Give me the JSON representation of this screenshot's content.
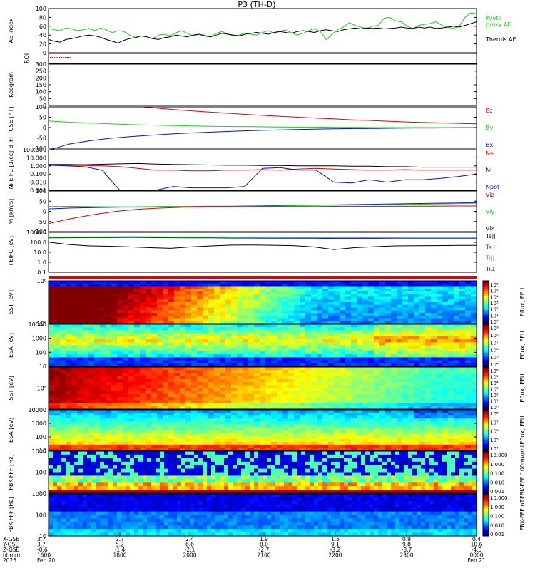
{
  "title": "P3 (TH-D)",
  "colors": {
    "green": "#18d018",
    "red": "#e00000",
    "blue": "#0010d8",
    "black": "#000000"
  },
  "chart_data": [
    {
      "id": "ae",
      "type": "line",
      "ylabel": "AE index",
      "ylim": [
        0,
        100
      ],
      "yticks": [
        "100",
        "80",
        "60",
        "40",
        "20",
        "0"
      ],
      "legend": [
        "Kyoto",
        "proxy AE",
        "Thernis AE"
      ],
      "series": [
        {
          "name": "Kyoto proxy AE",
          "color": "#18d018",
          "values": [
            55,
            52,
            50,
            56,
            54,
            50,
            52,
            55,
            50,
            56,
            52,
            45,
            50,
            48,
            40,
            35,
            38,
            36,
            32,
            40,
            42,
            38,
            45,
            50,
            44,
            38,
            42,
            40,
            36,
            44,
            48,
            42,
            38,
            40,
            45,
            42,
            40,
            46,
            50,
            44,
            48,
            52,
            45,
            40,
            44,
            50,
            55,
            48,
            30,
            42,
            52,
            58,
            68,
            62,
            58,
            55,
            60,
            62,
            78,
            80,
            72,
            70,
            60,
            55,
            62,
            64,
            66,
            70,
            62,
            58,
            55,
            60,
            80,
            90,
            88
          ]
        },
        {
          "name": "Thernis AE",
          "color": "#000000",
          "values": [
            30,
            26,
            24,
            30,
            32,
            35,
            38,
            40,
            38,
            35,
            30,
            26,
            22,
            28,
            32,
            34,
            38,
            36,
            32,
            30,
            34,
            36,
            40,
            38,
            36,
            40,
            42,
            38,
            36,
            40,
            44,
            42,
            40,
            38,
            42,
            44,
            46,
            44,
            42,
            46,
            48,
            46,
            44,
            48,
            50,
            48,
            46,
            50,
            52,
            50,
            48,
            52,
            54,
            56,
            54,
            56,
            55,
            56,
            54,
            55,
            56,
            58,
            56,
            55,
            58,
            56,
            58,
            55,
            56,
            58,
            60,
            58,
            62,
            66,
            70
          ]
        }
      ]
    },
    {
      "id": "roi",
      "type": "line",
      "ylabel": "ROI",
      "yticks": []
    },
    {
      "id": "keogram",
      "type": "heatmap",
      "ylabel": "Keogram",
      "ylim": [
        0,
        300
      ],
      "yticks": [
        "300",
        "250",
        "200",
        "150",
        "100",
        "50",
        "0"
      ]
    },
    {
      "id": "bfield",
      "type": "line",
      "ylabel": "B_FIT GSE [nT]",
      "ylim": [
        -100,
        100
      ],
      "yticks": [
        "100",
        "50",
        "0",
        "-50",
        "-100"
      ],
      "legend": [
        "Bz",
        "By",
        "Bx"
      ],
      "series": [
        {
          "name": "Bz",
          "color": "#e00000",
          "x_start": 0.22,
          "values": [
            100,
            93,
            87,
            81,
            76,
            71,
            66,
            61,
            57,
            53,
            49,
            45,
            42,
            38,
            35,
            32,
            29,
            26,
            24,
            22,
            20,
            18
          ]
        },
        {
          "name": "By",
          "color": "#18d018",
          "values": [
            32,
            26,
            22,
            18,
            14,
            12,
            10,
            8,
            6,
            5,
            4,
            3,
            2,
            2,
            1,
            1,
            0,
            0,
            0,
            0,
            0,
            0
          ]
        },
        {
          "name": "Bx",
          "color": "#0010d8",
          "values": [
            -110,
            -80,
            -64,
            -52,
            -44,
            -37,
            -31,
            -26,
            -22,
            -18,
            -15,
            -12,
            -10,
            -8,
            -6,
            -5,
            -4,
            -3,
            -2,
            -2,
            -1,
            -1
          ]
        }
      ]
    },
    {
      "id": "density",
      "type": "line",
      "ylabel": "Ni ElFC [1/cc]",
      "log": true,
      "ylim": [
        0.001,
        100
      ],
      "yticks": [
        "100.000",
        "10.000",
        "1.000",
        "0.100",
        "0.010",
        "0.001"
      ],
      "legend": [
        "Ne",
        "Ni",
        "Npot"
      ],
      "series": [
        {
          "name": "Ne",
          "color": "#e00000",
          "values": [
            1.2,
            1.2,
            1.1,
            1.0,
            0.8,
            0.5,
            0.3,
            0.3,
            0.25,
            0.25,
            0.3,
            0.3,
            0.35,
            0.3,
            0.4,
            0.5,
            0.4,
            0.35,
            0.3,
            0.3,
            0.35,
            0.3,
            0.3,
            0.3,
            0.3
          ]
        },
        {
          "name": "Ni",
          "color": "#000000",
          "values": [
            1.5,
            1.5,
            1.4,
            1.6,
            1.8,
            2.0,
            1.7,
            1.5,
            1.4,
            1.3,
            1.2,
            1.2,
            1.1,
            1.1,
            1.0,
            1.0,
            1.0,
            0.9,
            0.9,
            0.8,
            0.8,
            0.7,
            0.7,
            0.7,
            0.7
          ]
        },
        {
          "name": "Npot",
          "color": "#0010d8",
          "values": [
            1.2,
            1.0,
            0.8,
            0.3,
            0.001,
            0.001,
            0.001,
            0.003,
            0.002,
            0.002,
            0.002,
            0.003,
            0.5,
            0.6,
            0.3,
            0.3,
            0.01,
            0.008,
            0.02,
            0.01,
            0.02,
            0.02,
            0.03,
            0.05,
            0.1
          ]
        }
      ]
    },
    {
      "id": "velocity",
      "type": "line",
      "ylabel": "Vi [km/s]",
      "ylim": [
        -150,
        100
      ],
      "yticks": [
        "100",
        "50",
        "0",
        "-50",
        "-100"
      ],
      "legend": [
        "Viz",
        "Viy",
        "Vix"
      ],
      "series": [
        {
          "name": "Vix",
          "color": "#0010d8",
          "values": [
            -10,
            -5,
            -2,
            0,
            2,
            4,
            5,
            6,
            6,
            8,
            10,
            12,
            14,
            16,
            18,
            20,
            22,
            24,
            26,
            28
          ]
        },
        {
          "name": "Viy",
          "color": "#18d018",
          "values": [
            5,
            6,
            4,
            3,
            2,
            2,
            3,
            4,
            5,
            6,
            8,
            10,
            12,
            14,
            15,
            16,
            18,
            20,
            22,
            25
          ]
        },
        {
          "name": "Viz",
          "color": "#e00000",
          "values": [
            -100,
            -70,
            -45,
            -25,
            -12,
            -5,
            0,
            2,
            3,
            4,
            5,
            5,
            5,
            6,
            6,
            6,
            7,
            7,
            8,
            8
          ]
        }
      ]
    },
    {
      "id": "temperature",
      "type": "line",
      "ylabel": "Ti ElFC [eV]",
      "log": true,
      "ylim": [
        0.1,
        10000
      ],
      "yticks": [
        "1000.0",
        "100.0",
        "10.0",
        "1.0",
        "0.1"
      ],
      "legend": [
        "Te||",
        "Te⊥",
        "Ti||",
        "Ti⊥"
      ],
      "series": [
        {
          "name": "Te||",
          "color": "#000000",
          "values": [
            600,
            300,
            200,
            180,
            150,
            120,
            100,
            150,
            200,
            250,
            260,
            240,
            220,
            150,
            70,
            120,
            160,
            200,
            210,
            220,
            230,
            230
          ]
        },
        {
          "name": "Ti||",
          "color": "#18d018",
          "values": [
            2500,
            2600,
            2700,
            2800,
            2900,
            2800,
            2700,
            2600,
            2500,
            2500,
            2400,
            2400,
            2300,
            2300,
            2200,
            2200,
            2100,
            2100,
            2000,
            2000,
            2000,
            2000
          ]
        },
        {
          "name": "Ti⊥",
          "color": "#0010d8",
          "values": [
            2000,
            2100,
            2200,
            2200,
            2300,
            2200,
            2100,
            2000,
            2000,
            1900,
            1900,
            1800,
            1800,
            1800,
            1700,
            1700,
            1700,
            1600,
            1600,
            1600,
            1600,
            1600
          ]
        }
      ]
    },
    {
      "id": "sst_e",
      "type": "heatmap",
      "ylabel": "SST [eV]",
      "yticks": [
        "10⁶",
        "10⁵"
      ],
      "colorbar": {
        "label": "Eflux, EFU",
        "ticks": [
          "10⁶",
          "10⁵",
          "10⁴",
          "10³",
          "10²",
          "10¹",
          "10⁰"
        ]
      }
    },
    {
      "id": "esa_e",
      "type": "heatmap",
      "ylabel": "ESA [eV]",
      "yticks": [
        "10000",
        "1000",
        "100",
        "10"
      ],
      "colorbar": {
        "label": "Eflux, EFU",
        "ticks": [
          "10⁹",
          "10⁸",
          "10⁷",
          "10⁶",
          "10⁵",
          "10⁴"
        ]
      }
    },
    {
      "id": "sst_i",
      "type": "heatmap",
      "ylabel": "SST [eV]",
      "yticks": [
        "10⁵"
      ],
      "colorbar": {
        "label": "Eflux, EFU",
        "ticks": [
          "10⁶",
          "10⁵",
          "10⁴",
          "10³",
          "10²",
          "10¹",
          "10⁰"
        ]
      }
    },
    {
      "id": "esa_i",
      "type": "heatmap",
      "ylabel": "ESA [eV]",
      "yticks": [
        "10000",
        "1000",
        "100",
        "10"
      ],
      "colorbar": {
        "label": "Eflux, EFU",
        "ticks": [
          "10⁸",
          "10⁷",
          "10⁶",
          "10⁵",
          "10⁴"
        ]
      }
    },
    {
      "id": "fbk_e",
      "type": "heatmap",
      "ylabel": "FBK-FFF [Hz]",
      "yticks": [
        "1000",
        "100",
        "10"
      ],
      "colorbar": {
        "label": "FBK-FFF 100mV/ml",
        "ticks": [
          "10.000",
          "1.000",
          "0.100",
          "0.010",
          "0.001"
        ]
      }
    },
    {
      "id": "fbk_b",
      "type": "heatmap",
      "ylabel": "FBK-FFF [Hz]",
      "yticks": [
        "1000",
        "100",
        "10"
      ],
      "colorbar": {
        "label": "FBK-FFF nT",
        "ticks": [
          "10.000",
          "1.000",
          "0.100",
          "0.010",
          "0.001"
        ]
      }
    }
  ],
  "xaxis": {
    "row_labels": [
      "X-GSE",
      "Y-GSE",
      "Z-GSE",
      "hhmm",
      "2025"
    ],
    "columns": [
      [
        "3.7",
        "3.7",
        "-0.6",
        "1600",
        "Feb 20"
      ],
      [
        "2.7",
        "5.2",
        "-1.4",
        "1800",
        ""
      ],
      [
        "2.4",
        "6.6",
        "-2.1",
        "2000",
        ""
      ],
      [
        "1.9",
        "8.0",
        "-2.7",
        "2100",
        ""
      ],
      [
        "1.5",
        "9.1",
        "-3.2",
        "2200",
        ""
      ],
      [
        "0.9",
        "9.8",
        "-3.7",
        "2300",
        ""
      ],
      [
        "0.4",
        "10.6",
        "-4.0",
        "0000",
        "Feb 21"
      ]
    ]
  }
}
